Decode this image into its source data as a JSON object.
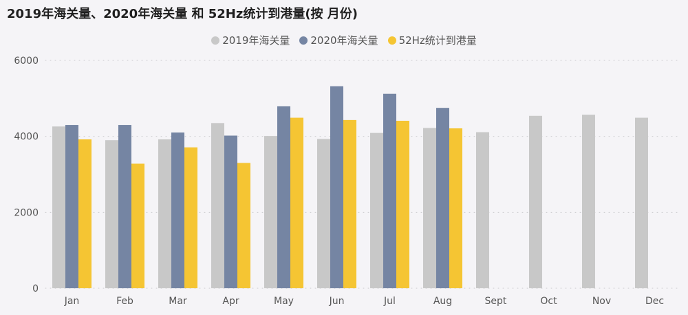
{
  "chart_data": {
    "type": "bar",
    "title": "2019年海关量、2020年海关量 和 52Hz统计到港量(按 月份)",
    "categories": [
      "Jan",
      "Feb",
      "Mar",
      "Apr",
      "May",
      "Jun",
      "Jul",
      "Aug",
      "Sept",
      "Oct",
      "Nov",
      "Dec"
    ],
    "series": [
      {
        "name": "2019年海关量",
        "color": "#c8c8c8",
        "values": [
          4260,
          3900,
          3920,
          4350,
          4010,
          3930,
          4090,
          4220,
          4110,
          4540,
          4570,
          4490
        ]
      },
      {
        "name": "2020年海关量",
        "color": "#7585a3",
        "values": [
          4300,
          4300,
          4100,
          4020,
          4790,
          5320,
          5120,
          4750,
          null,
          null,
          null,
          null
        ]
      },
      {
        "name": "52Hz统计到港量",
        "color": "#f5c533",
        "values": [
          3920,
          3280,
          3710,
          3300,
          4490,
          4430,
          4410,
          4210,
          null,
          null,
          null,
          null
        ]
      }
    ],
    "yticks": [
      0,
      2000,
      4000,
      6000
    ],
    "ylim": [
      0,
      6000
    ],
    "grid": true,
    "legend_position": "top-center"
  }
}
